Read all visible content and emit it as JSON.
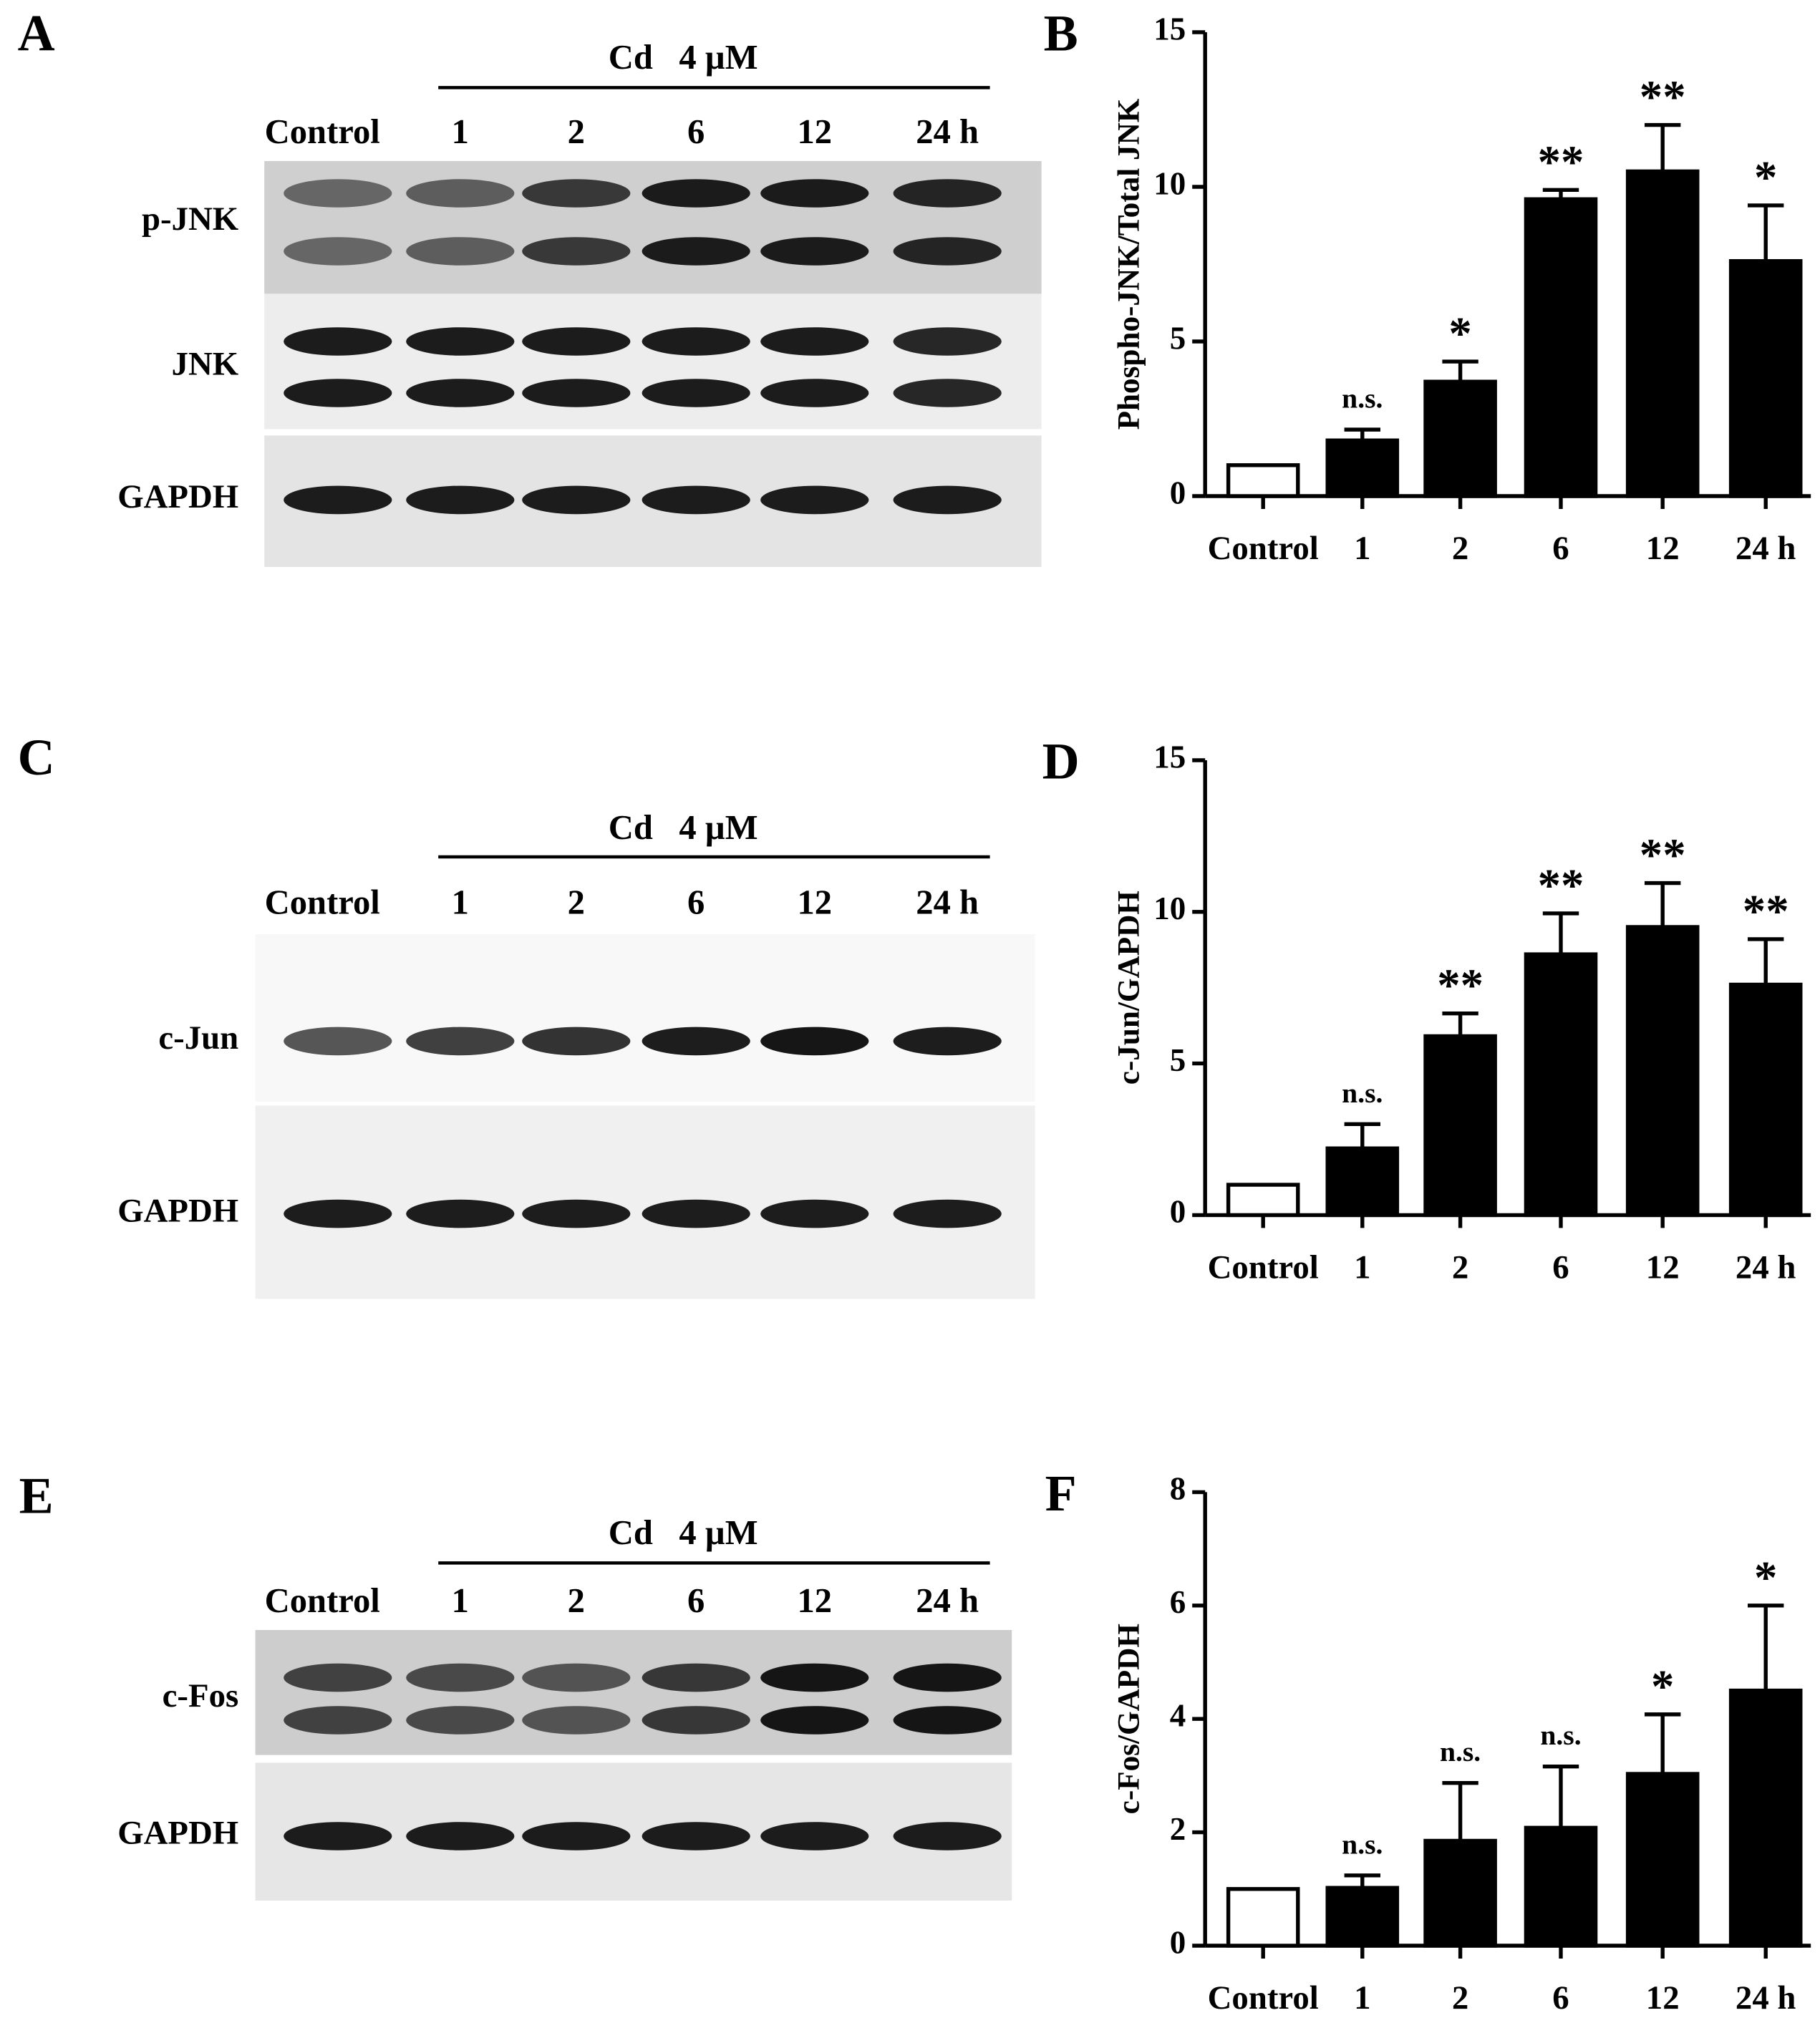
{
  "blots": [
    {
      "panel": "A",
      "treatment": "Cd   4 µM",
      "lanes": [
        "Control",
        "1",
        "2",
        "6",
        "12",
        "24 h"
      ],
      "rows": [
        "p-JNK",
        "JNK",
        "GAPDH"
      ]
    },
    {
      "panel": "C",
      "treatment": "Cd   4 µM",
      "lanes": [
        "Control",
        "1",
        "2",
        "6",
        "12",
        "24 h"
      ],
      "rows": [
        "c-Jun",
        "GAPDH"
      ]
    },
    {
      "panel": "E",
      "treatment": "Cd   4 µM",
      "lanes": [
        "Control",
        "1",
        "2",
        "6",
        "12",
        "24 h"
      ],
      "rows": [
        "c-Fos",
        "GAPDH"
      ]
    }
  ],
  "chart_data": [
    {
      "type": "bar",
      "panel": "B",
      "y_label": "Phospho-JNK/Total JNK",
      "categories": [
        "Control",
        "1",
        "2",
        "6",
        "12",
        "24 h"
      ],
      "values": [
        1,
        1.8,
        3.7,
        9.6,
        10.5,
        7.6
      ],
      "errors": [
        null,
        0.35,
        0.65,
        0.3,
        1.5,
        1.8
      ],
      "annotations": [
        null,
        "n.s.",
        "*",
        "**",
        "**",
        "*"
      ],
      "ylim": [
        0,
        15
      ],
      "yticks": [
        0,
        5,
        10,
        15
      ]
    },
    {
      "type": "bar",
      "panel": "D",
      "y_label": "c-Jun/GAPDH",
      "categories": [
        "Control",
        "1",
        "2",
        "6",
        "12",
        "24 h"
      ],
      "values": [
        1,
        2.2,
        5.9,
        8.6,
        9.5,
        7.6
      ],
      "errors": [
        null,
        0.8,
        0.75,
        1.35,
        1.45,
        1.5
      ],
      "annotations": [
        null,
        "n.s.",
        "**",
        "**",
        "**",
        "**"
      ],
      "ylim": [
        0,
        15
      ],
      "yticks": [
        0,
        5,
        10,
        15
      ]
    },
    {
      "type": "bar",
      "panel": "F",
      "y_label": "c-Fos/GAPDH",
      "categories": [
        "Control",
        "1",
        "2",
        "6",
        "12",
        "24 h"
      ],
      "values": [
        1,
        1.02,
        1.85,
        2.08,
        3.03,
        4.5
      ],
      "errors": [
        null,
        0.22,
        1.02,
        1.08,
        1.05,
        1.5
      ],
      "annotations": [
        null,
        "n.s.",
        "n.s.",
        "n.s.",
        "*",
        "*"
      ],
      "ylim": [
        0,
        8
      ],
      "yticks": [
        0,
        2,
        4,
        6,
        8
      ]
    }
  ]
}
